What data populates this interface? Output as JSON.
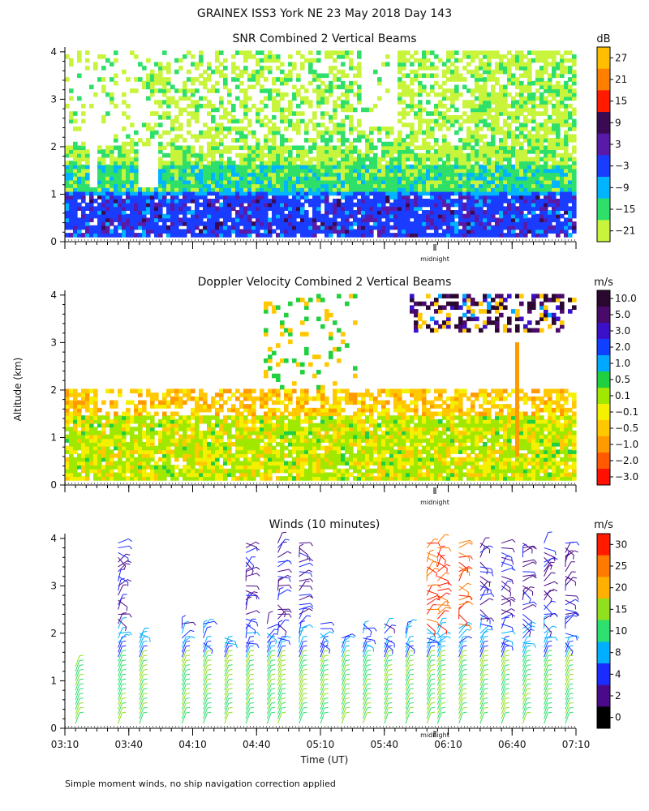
{
  "figure": {
    "title": "GRAINEX ISS3 York NE  23 May 2018 Day 143",
    "ylabel": "Altitude (km)",
    "xlabel": "Time (UT)",
    "footnote": "Simple moment winds, no ship navigation correction applied"
  },
  "chart_data": [
    {
      "type": "heatmap",
      "title": "SNR Combined 2 Vertical Beams",
      "ylabel": "Altitude (km)",
      "ylim": [
        0,
        4.1
      ],
      "yticks": [
        "0",
        "1",
        "2",
        "3",
        "4"
      ],
      "midnight_label": "midnight",
      "units": "dB",
      "colorbar": {
        "labels": [
          "27",
          "21",
          "15",
          "9",
          "3",
          "−3",
          "−9",
          "−15",
          "−21"
        ],
        "colors": [
          "#ffbf00",
          "#ff7f00",
          "#ff1a00",
          "#3a0a52",
          "#5a1aa8",
          "#1a3cff",
          "#00b4ff",
          "#2ee06a",
          "#c8f53c"
        ]
      },
      "description_layers": [
        {
          "alt_range": [
            0.1,
            0.9
          ],
          "level_dB": "-3 to 9"
        },
        {
          "alt_range": [
            0.9,
            1.5
          ],
          "level_dB": "-15 to -3"
        },
        {
          "alt_range": [
            1.5,
            4.0
          ],
          "level_dB": "-21 to -15"
        }
      ]
    },
    {
      "type": "heatmap",
      "title": "Doppler Velocity Combined 2 Vertical Beams",
      "ylabel": "Altitude (km)",
      "ylim": [
        0,
        4.1
      ],
      "yticks": [
        "0",
        "1",
        "2",
        "3",
        "4"
      ],
      "midnight_label": "midnight",
      "units": "m/s",
      "colorbar": {
        "labels": [
          "10.0",
          "5.0",
          "3.0",
          "2.0",
          "1.0",
          "0.5",
          "0.1",
          "−0.1",
          "−0.5",
          "−1.0",
          "−2.0",
          "−3.0"
        ],
        "colors": [
          "#2a0830",
          "#4a0a6a",
          "#3a10c8",
          "#1040ff",
          "#00a8ff",
          "#20d040",
          "#a0e800",
          "#f5f000",
          "#ffc800",
          "#ff9a00",
          "#ff5a00",
          "#ff1000"
        ]
      }
    },
    {
      "type": "scatter",
      "title": "Winds (10 minutes)",
      "ylabel": "Altitude (km)",
      "xlabel": "Time (UT)",
      "ylim": [
        0,
        4.1
      ],
      "yticks": [
        "0",
        "1",
        "2",
        "3",
        "4"
      ],
      "xticks": [
        "03:10",
        "03:40",
        "04:10",
        "04:40",
        "05:10",
        "05:40",
        "06:10",
        "06:40",
        "07:10"
      ],
      "midnight_label": "midnight",
      "units": "m/s",
      "colorbar": {
        "labels": [
          "30",
          "25",
          "20",
          "15",
          "10",
          "8",
          "4",
          "2",
          "0"
        ],
        "colors": [
          "#ff1a00",
          "#ff7a00",
          "#ffb000",
          "#90e020",
          "#2ee070",
          "#00b0ff",
          "#1a2cff",
          "#4a0a8a",
          "#000000"
        ]
      },
      "profile_times": [
        "03:15",
        "03:35",
        "03:45",
        "04:05",
        "04:15",
        "04:25",
        "04:35",
        "04:45",
        "04:50",
        "05:00",
        "05:10",
        "05:20",
        "05:30",
        "05:40",
        "05:50",
        "06:00",
        "06:05",
        "06:15",
        "06:25",
        "06:35",
        "06:45",
        "06:55",
        "07:05"
      ]
    }
  ]
}
